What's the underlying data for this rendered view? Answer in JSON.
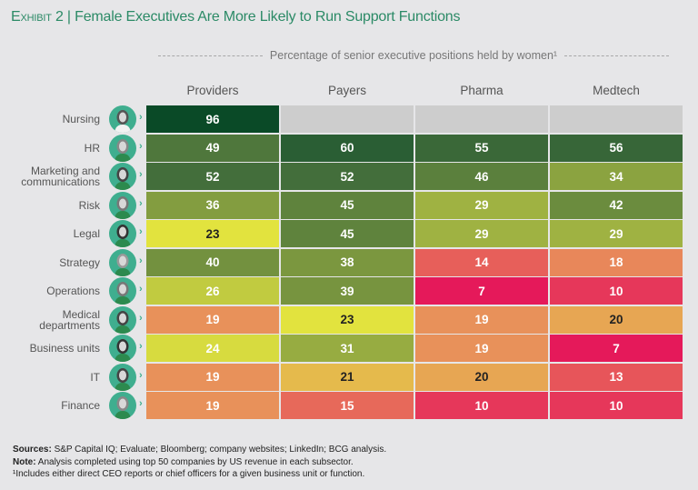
{
  "header": {
    "exhibit": "Exhibit 2",
    "separator": "|",
    "title": "Female Executives Are More Likely to Run Support Functions",
    "subtitle": "Percentage of senior executive positions held by women¹"
  },
  "chart_data": {
    "type": "heatmap",
    "title": "Female Executives Are More Likely to Run Support Functions",
    "subtitle": "Percentage of senior executive positions held by women¹",
    "columns": [
      "Providers",
      "Payers",
      "Pharma",
      "Medtech"
    ],
    "rows": [
      "Nursing",
      "HR",
      "Marketing and communications",
      "Risk",
      "Legal",
      "Strategy",
      "Operations",
      "Medical departments",
      "Business units",
      "IT",
      "Finance"
    ],
    "values": [
      [
        96,
        null,
        null,
        null
      ],
      [
        49,
        60,
        55,
        56
      ],
      [
        52,
        52,
        46,
        34
      ],
      [
        36,
        45,
        29,
        42
      ],
      [
        23,
        45,
        29,
        29
      ],
      [
        40,
        38,
        14,
        18
      ],
      [
        26,
        39,
        7,
        10
      ],
      [
        19,
        23,
        19,
        20
      ],
      [
        24,
        31,
        19,
        7
      ],
      [
        19,
        21,
        20,
        13
      ],
      [
        19,
        15,
        10,
        10
      ]
    ],
    "color_scale": {
      "low": "#e5195a",
      "mid_low": "#e8915a",
      "mid": "#e2e33e",
      "mid_high": "#9fb242",
      "high": "#436e3b",
      "max": "#0a4a27",
      "missing": "#cdcdcd"
    }
  },
  "footer": {
    "sources_label": "Sources:",
    "sources_text": " S&P Capital IQ; Evaluate; Bloomberg; company websites; LinkedIn; BCG analysis.",
    "note_label": "Note:",
    "note_text": " Analysis completed using top 50 companies by US revenue in each subsector.",
    "footnote": "¹Includes either direct CEO reports or chief officers for a given business unit or function."
  },
  "icons": {
    "row_avatar": "woman-avatar-icon",
    "row_chevron": "chevron-right-icon"
  }
}
